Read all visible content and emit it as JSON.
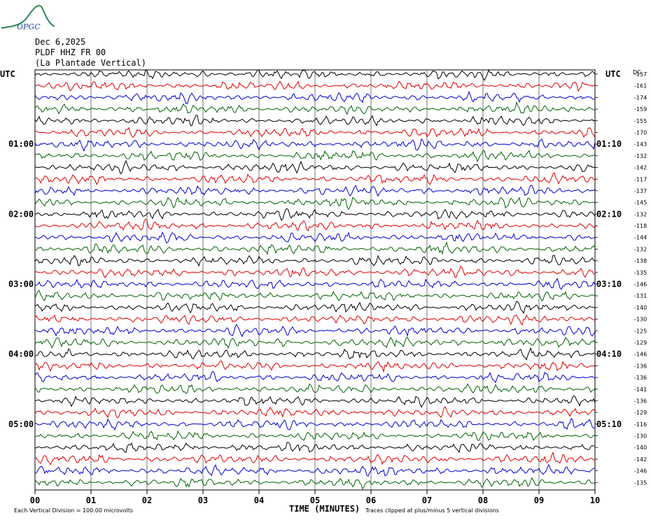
{
  "header": {
    "logo_text": "OPGC",
    "date": "Dec 6,2025",
    "channel": "PLDF HHZ FR 00",
    "station_name": "(La Plantade Vertical)"
  },
  "colors": {
    "trace_cycle": [
      "#000000",
      "#e00000",
      "#0000d0",
      "#006400"
    ],
    "logo_green": "#2e8b57",
    "logo_blue": "#1f4fa0"
  },
  "chart_data": {
    "type": "line",
    "description_type": "helicorder",
    "left_label": "UTC",
    "right_label": "UTC",
    "dc_label": "DC",
    "xlabel": "TIME (MINUTES)",
    "x_ticks": [
      "00",
      "01",
      "02",
      "03",
      "04",
      "05",
      "06",
      "07",
      "08",
      "09",
      "10"
    ],
    "xlim": [
      0,
      10
    ],
    "rows": 36,
    "row_minutes": 10,
    "left_time_labels": [
      {
        "row": 6,
        "label": "01:00"
      },
      {
        "row": 12,
        "label": "02:00"
      },
      {
        "row": 18,
        "label": "03:00"
      },
      {
        "row": 24,
        "label": "04:00"
      },
      {
        "row": 30,
        "label": "05:00"
      }
    ],
    "right_time_labels": [
      {
        "row": 6,
        "label": "01:10"
      },
      {
        "row": 12,
        "label": "02:10"
      },
      {
        "row": 18,
        "label": "03:10"
      },
      {
        "row": 24,
        "label": "04:10"
      },
      {
        "row": 30,
        "label": "05:10"
      }
    ],
    "dc_offsets": [
      "-157",
      "-161",
      "-174",
      "-159",
      "-155",
      "-170",
      "-143",
      "-132",
      "-142",
      "-117",
      "-137",
      "-145",
      "-132",
      "-118",
      "-144",
      "-132",
      "-138",
      "-135",
      "-146",
      "-131",
      "-140",
      "-130",
      "-125",
      "-129",
      "-146",
      "-136",
      "-136",
      "-141",
      "-136",
      "-129",
      "-116",
      "-130",
      "-140",
      "-142",
      "-146",
      "-135"
    ],
    "footer_left": "Each Vertical Division =  100.00 microvolts",
    "footer_right": "Traces clipped at plus/minus 5 vertical divisions"
  }
}
